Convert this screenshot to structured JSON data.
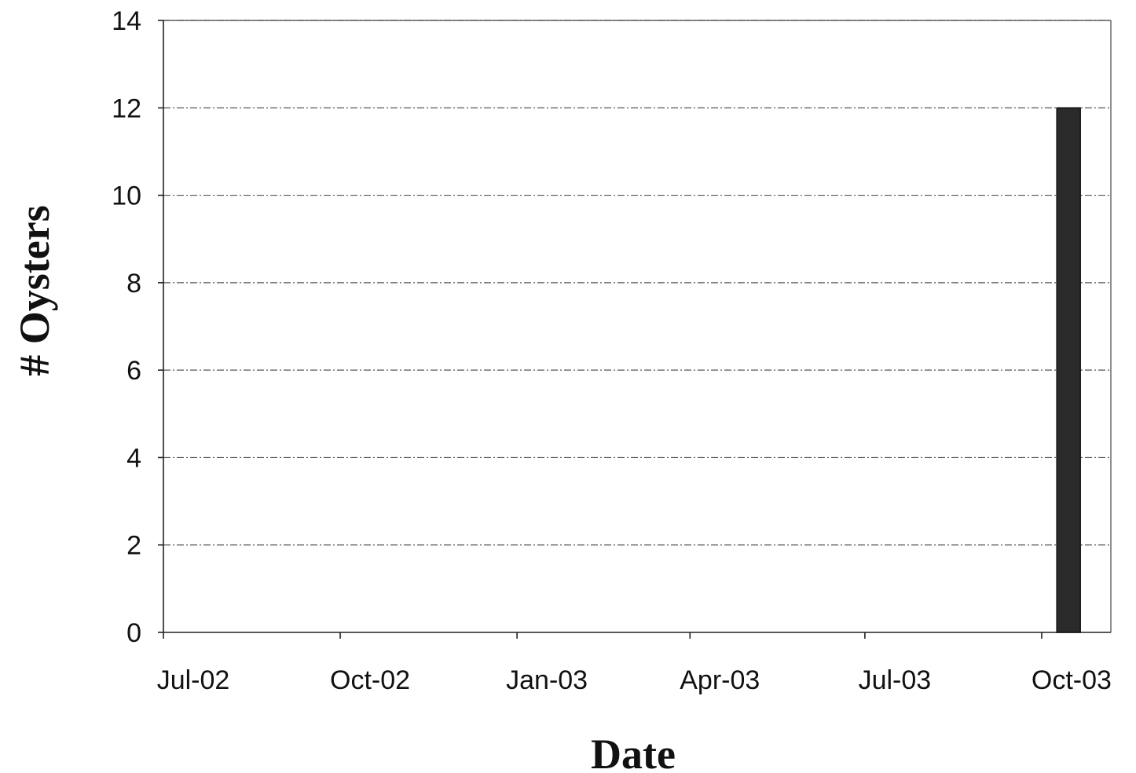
{
  "chart_data": {
    "type": "bar",
    "title": "",
    "xlabel": "Date",
    "ylabel": "# Oysters",
    "x_ticks": [
      "Jul-02",
      "Oct-02",
      "Jan-03",
      "Apr-03",
      "Jul-03",
      "Oct-03"
    ],
    "y_ticks": [
      "0",
      "2",
      "4",
      "6",
      "8",
      "10",
      "12",
      "14"
    ],
    "ylim": [
      0,
      14
    ],
    "xlim": [
      "2002-07-01",
      "2003-11-06"
    ],
    "grid": true,
    "legend": "none",
    "series": [
      {
        "points": [
          {
            "x": "2003-10-15",
            "y": 12
          }
        ]
      }
    ],
    "bar_color": "#2a2a2a"
  }
}
